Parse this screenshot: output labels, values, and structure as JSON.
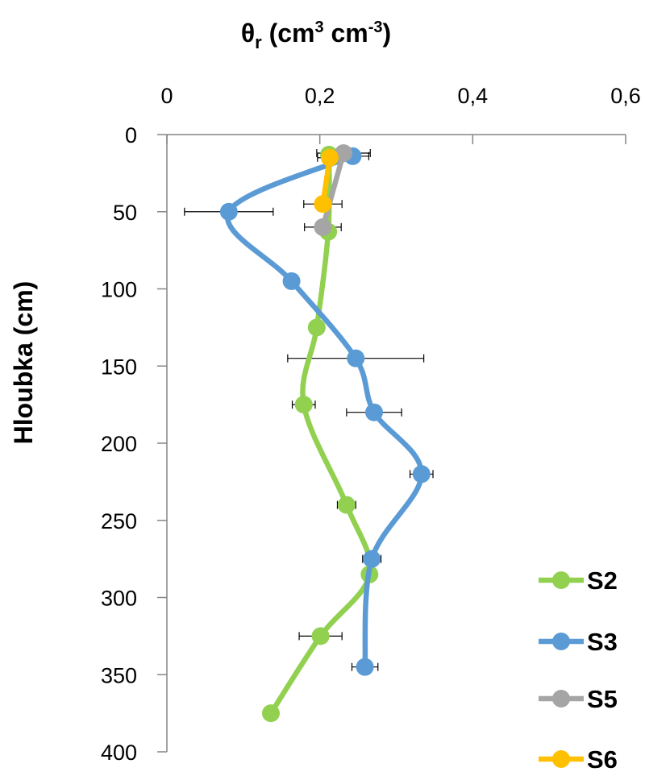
{
  "chart_data": {
    "type": "line",
    "title": "",
    "xlabel": "θr (cm³ cm⁻³)",
    "xlabel_parts": {
      "symbol": "θ",
      "subscript": "r",
      "unit_open": " (cm",
      "unit_sup1": "3",
      "unit_mid": " cm",
      "unit_sup2": "-3",
      "unit_close": ")"
    },
    "ylabel": "Hloubka (cm)",
    "x_axis_position": "top",
    "y_axis_inverted": true,
    "xlim": [
      0,
      0.6
    ],
    "ylim": [
      0,
      400
    ],
    "x_ticks": [
      {
        "value": 0,
        "label": "0"
      },
      {
        "value": 0.2,
        "label": "0,2"
      },
      {
        "value": 0.4,
        "label": "0,4"
      },
      {
        "value": 0.6,
        "label": "0,6"
      }
    ],
    "y_ticks": [
      {
        "value": 0,
        "label": "0"
      },
      {
        "value": 50,
        "label": "50"
      },
      {
        "value": 100,
        "label": "100"
      },
      {
        "value": 150,
        "label": "150"
      },
      {
        "value": 200,
        "label": "200"
      },
      {
        "value": 250,
        "label": "250"
      },
      {
        "value": 300,
        "label": "300"
      },
      {
        "value": 350,
        "label": "350"
      },
      {
        "value": 400,
        "label": "400"
      }
    ],
    "grid": false,
    "legend_position": "right",
    "series": [
      {
        "name": "S2",
        "color": "#92d050",
        "points": [
          {
            "x": 0.212,
            "depth": 13,
            "err": 0
          },
          {
            "x": 0.211,
            "depth": 63,
            "err": 0
          },
          {
            "x": 0.196,
            "depth": 125,
            "err": 0
          },
          {
            "x": 0.179,
            "depth": 175,
            "err": 0.015
          },
          {
            "x": 0.235,
            "depth": 240,
            "err": 0.012
          },
          {
            "x": 0.265,
            "depth": 285,
            "err": 0
          },
          {
            "x": 0.201,
            "depth": 325,
            "err": 0.028
          },
          {
            "x": 0.136,
            "depth": 375,
            "err": 0
          }
        ]
      },
      {
        "name": "S3",
        "color": "#5b9bd5",
        "points": [
          {
            "x": 0.243,
            "depth": 14,
            "err": 0.021
          },
          {
            "x": 0.081,
            "depth": 50,
            "err": 0.058
          },
          {
            "x": 0.163,
            "depth": 95,
            "err": 0
          },
          {
            "x": 0.247,
            "depth": 145,
            "err": 0.089
          },
          {
            "x": 0.271,
            "depth": 180,
            "err": 0.036
          },
          {
            "x": 0.333,
            "depth": 220,
            "err": 0.015
          },
          {
            "x": 0.268,
            "depth": 275,
            "err": 0.012
          },
          {
            "x": 0.259,
            "depth": 345,
            "err": 0.017
          }
        ]
      },
      {
        "name": "S5",
        "color": "#a5a5a5",
        "points": [
          {
            "x": 0.231,
            "depth": 12,
            "err": 0.035
          },
          {
            "x": 0.204,
            "depth": 60,
            "err": 0.024
          }
        ]
      },
      {
        "name": "S6",
        "color": "#ffc000",
        "points": [
          {
            "x": 0.213,
            "depth": 15,
            "err": 0.016
          },
          {
            "x": 0.204,
            "depth": 45,
            "err": 0.025
          }
        ]
      }
    ]
  }
}
